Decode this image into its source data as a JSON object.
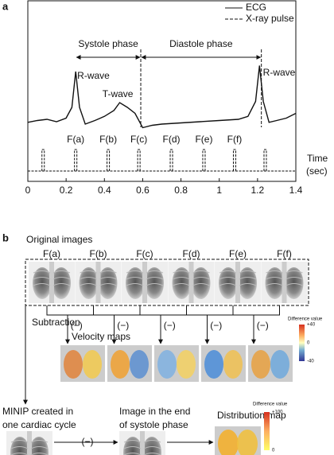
{
  "panel_a": {
    "label": "a",
    "legend": [
      "ECG",
      "X-ray pulse"
    ],
    "phases": [
      "Systole phase",
      "Diastole phase"
    ],
    "phase_bounds": [
      0.25,
      0.59,
      1.22
    ],
    "waves": [
      "R-wave",
      "T-wave",
      "R-wave"
    ],
    "ecg": {
      "x": [
        0,
        0.05,
        0.1,
        0.15,
        0.2,
        0.23,
        0.25,
        0.27,
        0.3,
        0.35,
        0.4,
        0.45,
        0.48,
        0.52,
        0.56,
        0.6,
        0.65,
        0.7,
        0.8,
        0.9,
        1.0,
        1.1,
        1.15,
        1.19,
        1.21,
        1.23,
        1.26,
        1.3,
        1.35,
        1.4
      ],
      "values": [
        1.5,
        1.8,
        2,
        1.6,
        2.2,
        4,
        10,
        4,
        1.2,
        1.8,
        2.5,
        3.5,
        4.8,
        4,
        3,
        0.6,
        1,
        1.2,
        1.4,
        1.6,
        1.8,
        2,
        2.5,
        5,
        11,
        5,
        1.5,
        1.8,
        2.2,
        3
      ],
      "ylim": [
        0,
        12
      ]
    },
    "pulses": {
      "x": [
        0.08,
        0.25,
        0.42,
        0.58,
        0.75,
        0.92,
        1.08,
        1.24
      ],
      "labels": [
        null,
        "F(a)",
        "F(b)",
        "F(c)",
        "F(d)",
        "F(e)",
        "F(f)",
        null
      ]
    },
    "x_axis_label": [
      "Time",
      "(sec)"
    ],
    "xlim": [
      0,
      1.4
    ],
    "xticks": [
      0,
      0.2,
      0.4,
      0.6,
      0.8,
      1,
      1.2,
      1.4
    ]
  },
  "panel_b": {
    "label": "b",
    "original_title": "Original images",
    "frames": [
      "F(a)",
      "F(b)",
      "F(c)",
      "F(d)",
      "F(e)",
      "F(f)"
    ],
    "subtraction": "Subtraction",
    "minus": "(−)",
    "velocity_title": "Velocity maps",
    "velocity_scale": {
      "title": "Difference value",
      "ticks": [
        {
          "value": 40,
          "label": "+40"
        },
        0,
        {
          "value": -40,
          "label": "-40"
        }
      ]
    },
    "minip": [
      "MINIP created in",
      "one cardiac cycle"
    ],
    "end_systole": [
      "Image in the end",
      "of systole phase"
    ],
    "distribution_title": "Distribution map",
    "distribution_scale": {
      "title": "Difference value",
      "ticks": [
        {
          "value": 100,
          "label": "+100"
        },
        0
      ]
    }
  }
}
